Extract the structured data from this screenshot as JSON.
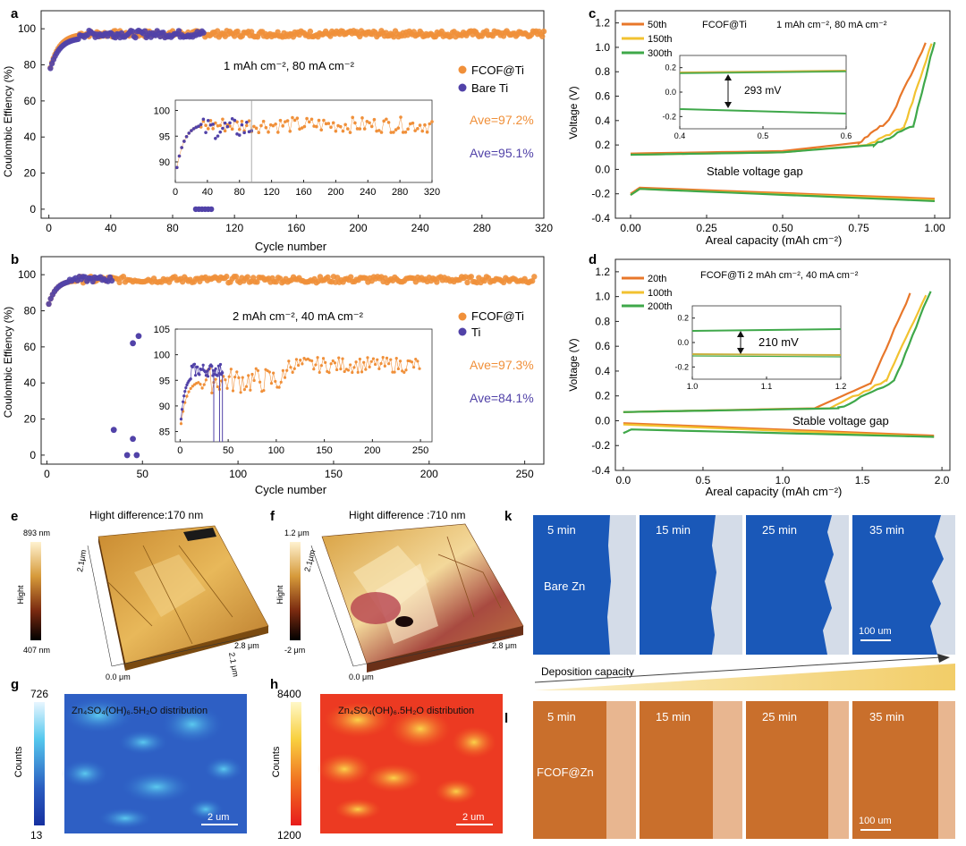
{
  "colors": {
    "fcof": "#F0903A",
    "bare": "#5142A8",
    "c50": "#E8772A",
    "c150": "#F2C230",
    "c300": "#3FA84A",
    "blueZn": "#1a57b8",
    "orangeZn": "#c9722e"
  },
  "panel_a": {
    "letter": "a",
    "condition": "1 mAh cm⁻², 80  mA cm⁻²",
    "ylabel": "Coulombic Effiency (%)",
    "xlabel": "Cycle number",
    "legend": [
      "FCOF@Ti",
      "Bare Ti"
    ],
    "ave": [
      "Ave=97.2%",
      "Ave=95.1%"
    ],
    "xticks": [
      "0",
      "40",
      "80",
      "120",
      "160",
      "200",
      "240",
      "280",
      "320"
    ],
    "yticks": [
      "0",
      "20",
      "40",
      "60",
      "80",
      "100"
    ],
    "inset_xticks": [
      "0",
      "40",
      "80",
      "120",
      "160",
      "200",
      "240",
      "280",
      "320"
    ],
    "inset_yticks": [
      "90",
      "95",
      "100"
    ]
  },
  "panel_b": {
    "letter": "b",
    "condition": "2 mAh cm⁻², 40 mA cm⁻²",
    "ylabel": "Coulombic Effiency (%)",
    "xlabel": "Cycle number",
    "legend": [
      "FCOF@Ti",
      "Ti"
    ],
    "ave": [
      "Ave=97.3%",
      "Ave=84.1%"
    ],
    "xticks": [
      "0",
      "50",
      "100",
      "150",
      "200",
      "250"
    ],
    "yticks": [
      "0",
      "20",
      "40",
      "60",
      "80",
      "100"
    ],
    "inset_xticks": [
      "0",
      "50",
      "100",
      "150",
      "200",
      "250"
    ],
    "inset_yticks": [
      "85",
      "90",
      "95",
      "100",
      "105"
    ]
  },
  "panel_c": {
    "letter": "c",
    "title": "FCOF@Ti",
    "condition": "1 mAh cm⁻²,  80 mA cm⁻²",
    "legend": [
      "50th",
      "150th",
      "300th"
    ],
    "ylabel": "Voltage (V)",
    "xlabel": "Areal capacity (mAh cm⁻²)",
    "gap_label": "Stable voltage gap",
    "inset_value": "293 mV",
    "xticks": [
      "0.00",
      "0.25",
      "0.50",
      "0.75",
      "1.00"
    ],
    "yticks": [
      "-0.4",
      "-0.2",
      "0.0",
      "0.2",
      "0.4",
      "0.6",
      "0.8",
      "1.0",
      "1.2"
    ],
    "inset_xticks": [
      "0.4",
      "0.5",
      "0.6"
    ],
    "inset_yticks": [
      "0.2",
      "0.0",
      "-0.2"
    ]
  },
  "panel_d": {
    "letter": "d",
    "title": "FCOF@Ti  2 mAh cm⁻², 40 mA cm⁻²",
    "legend": [
      "20th",
      "100th",
      "200th"
    ],
    "ylabel": "Voltage (V)",
    "xlabel": "Areal capacity (mAh cm⁻²)",
    "gap_label": "Stable voltage gap",
    "inset_value": "210 mV",
    "xticks": [
      "0.0",
      "0.5",
      "1.0",
      "1.5",
      "2.0"
    ],
    "yticks": [
      "-0.4",
      "-0.2",
      "0.0",
      "0.2",
      "0.4",
      "0.6",
      "0.8",
      "1.0",
      "1.2"
    ],
    "inset_xticks": [
      "1.0",
      "1.1",
      "1.2"
    ],
    "inset_yticks": [
      "0.2",
      "0.0",
      "-0.2"
    ]
  },
  "panel_e": {
    "letter": "e",
    "title": "Hight difference:170 nm",
    "scale_top": "893 nm",
    "scale_bottom": "407 nm",
    "scale_label": "Hight",
    "axis_a": "2.1μm",
    "axis_b": "2.8 μm",
    "axis_c": "2.1 μm",
    "axis_origin": "0.0 μm"
  },
  "panel_f": {
    "letter": "f",
    "title": "Hight difference :710 nm",
    "scale_top": "1.2 μm",
    "scale_bottom": "-2 μm",
    "scale_label": "Hight",
    "axis_a": "2.1μm",
    "axis_b": "2.8 μm",
    "axis_origin": "0.0 μm"
  },
  "panel_g": {
    "letter": "g",
    "title": "Zn₄SO₄(OH)₆.5H₂O distribution",
    "scale_top": "726",
    "scale_bottom": "13",
    "scale_label": "Counts",
    "scalebar": "2 um"
  },
  "panel_h": {
    "letter": "h",
    "title": "Zn₄SO₄(OH)₆.5H₂O distribution",
    "scale_top": "8400",
    "scale_bottom": "1200",
    "scale_label": "Counts",
    "scalebar": "2 um"
  },
  "panel_k": {
    "letter": "k",
    "times": [
      "5 min",
      "15 min",
      "25 min",
      "35 min"
    ],
    "sample": "Bare Zn",
    "scalebar": "100 um"
  },
  "deposition_label": "Deposition capacity",
  "panel_l": {
    "letter": "l",
    "times": [
      "5 min",
      "15 min",
      "25 min",
      "35 min"
    ],
    "sample": "FCOF@Zn",
    "scalebar": "100 um"
  },
  "chart_data": [
    {
      "type": "scatter",
      "panel": "a",
      "title": "1 mAh cm-2, 80 mA cm-2",
      "xlabel": "Cycle number",
      "ylabel": "Coulombic Effiency (%)",
      "xlim": [
        -5,
        320
      ],
      "ylim": [
        -5,
        110
      ],
      "series": [
        {
          "name": "FCOF@Ti",
          "x_range": [
            1,
            320
          ],
          "start": 75,
          "plateau": 97.2
        },
        {
          "name": "Bare Ti",
          "x_range": [
            1,
            100
          ],
          "start": 75,
          "plateau": 95.1
        }
      ]
    },
    {
      "type": "scatter",
      "panel": "b",
      "title": "2 mAh cm-2, 40 mA cm-2",
      "xlabel": "Cycle number",
      "ylabel": "Coulombic Effiency (%)",
      "xlim": [
        -3,
        260
      ],
      "ylim": [
        -5,
        110
      ],
      "series": [
        {
          "name": "FCOF@Ti",
          "x_range": [
            1,
            255
          ],
          "start": 80,
          "plateau": 97.3
        },
        {
          "name": "Ti",
          "x_range": [
            1,
            50
          ],
          "start": 80,
          "plateau": 96,
          "outliers": [
            [
              35,
              14
            ],
            [
              42,
              0
            ],
            [
              45,
              9
            ],
            [
              47,
              0
            ],
            [
              45,
              62
            ],
            [
              48,
              66
            ]
          ]
        }
      ]
    },
    {
      "type": "line",
      "panel": "c",
      "xlabel": "Areal capacity (mAh cm-2)",
      "ylabel": "Voltage (V)",
      "xlim": [
        -0.05,
        1.05
      ],
      "ylim": [
        -0.4,
        1.3
      ],
      "series": [
        {
          "name": "50th",
          "charge": [
            [
              0,
              0.13
            ],
            [
              0.5,
              0.15
            ],
            [
              0.75,
              0.22
            ],
            [
              0.85,
              0.4
            ],
            [
              0.97,
              1.03
            ]
          ],
          "discharge": [
            [
              0,
              -0.2
            ],
            [
              0.03,
              -0.15
            ],
            [
              1.0,
              -0.24
            ]
          ]
        },
        {
          "name": "150th",
          "charge": [
            [
              0,
              0.12
            ],
            [
              0.5,
              0.14
            ],
            [
              0.78,
              0.2
            ],
            [
              0.9,
              0.35
            ],
            [
              0.99,
              1.03
            ]
          ],
          "discharge": [
            [
              0,
              -0.21
            ],
            [
              0.03,
              -0.16
            ],
            [
              1.0,
              -0.25
            ]
          ]
        },
        {
          "name": "300th",
          "charge": [
            [
              0,
              0.12
            ],
            [
              0.5,
              0.14
            ],
            [
              0.8,
              0.2
            ],
            [
              0.93,
              0.36
            ],
            [
              1.0,
              1.05
            ]
          ],
          "discharge": [
            [
              0,
              -0.21
            ],
            [
              0.03,
              -0.16
            ],
            [
              1.0,
              -0.26
            ]
          ]
        }
      ]
    },
    {
      "type": "line",
      "panel": "d",
      "xlabel": "Areal capacity (mAh cm-2)",
      "ylabel": "Voltage (V)",
      "xlim": [
        -0.05,
        2.05
      ],
      "ylim": [
        -0.4,
        1.3
      ],
      "series": [
        {
          "name": "20th",
          "charge": [
            [
              0,
              0.07
            ],
            [
              1.2,
              0.1
            ],
            [
              1.55,
              0.3
            ],
            [
              1.8,
              1.02
            ]
          ],
          "discharge": [
            [
              0,
              -0.02
            ],
            [
              1.95,
              -0.12
            ]
          ]
        },
        {
          "name": "100th",
          "charge": [
            [
              0,
              0.07
            ],
            [
              1.3,
              0.1
            ],
            [
              1.65,
              0.32
            ],
            [
              1.9,
              1.02
            ]
          ],
          "discharge": [
            [
              0,
              -0.03
            ],
            [
              1.95,
              -0.13
            ]
          ]
        },
        {
          "name": "200th",
          "charge": [
            [
              0,
              0.07
            ],
            [
              1.35,
              0.1
            ],
            [
              1.7,
              0.32
            ],
            [
              1.93,
              1.05
            ]
          ],
          "discharge": [
            [
              0,
              -0.1
            ],
            [
              0.05,
              -0.07
            ],
            [
              1.95,
              -0.13
            ]
          ]
        }
      ]
    }
  ]
}
